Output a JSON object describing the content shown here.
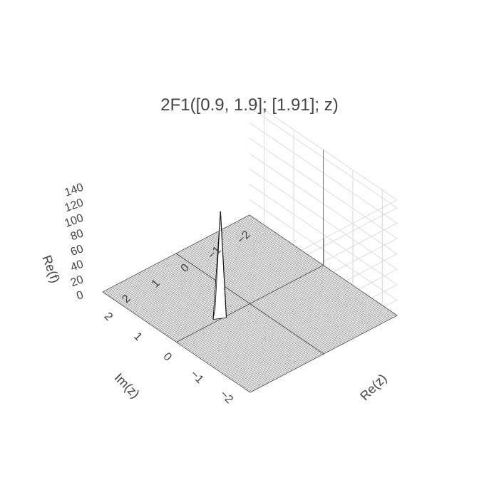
{
  "chart_data": {
    "type": "surface",
    "title": "2F1([0.9, 1.9]; [1.91]; z)",
    "xlabel": "Re(z)",
    "ylabel": "Im(z)",
    "zlabel": "Re(f)",
    "xlim": [
      -2.5,
      2.5
    ],
    "ylim": [
      -2.5,
      2.5
    ],
    "zlim": [
      0,
      150
    ],
    "x_ticks": [
      "−2",
      "−1",
      "0",
      "1",
      "2"
    ],
    "x_tick_values": [
      -2,
      -1,
      0,
      1,
      2
    ],
    "y_ticks": [
      "−2",
      "−1",
      "0",
      "1",
      "2"
    ],
    "y_tick_values": [
      -2,
      -1,
      0,
      1,
      2
    ],
    "z_ticks": [
      "0",
      "20",
      "40",
      "60",
      "80",
      "100",
      "120",
      "140"
    ],
    "z_tick_values": [
      0,
      20,
      40,
      60,
      80,
      100,
      120,
      140
    ],
    "grid": true,
    "surface_color": "#ffffff",
    "mesh_color": "#222222",
    "peak": {
      "re": 1.0,
      "im": 0.0,
      "value": 140
    },
    "surface_baseline": 0
  }
}
